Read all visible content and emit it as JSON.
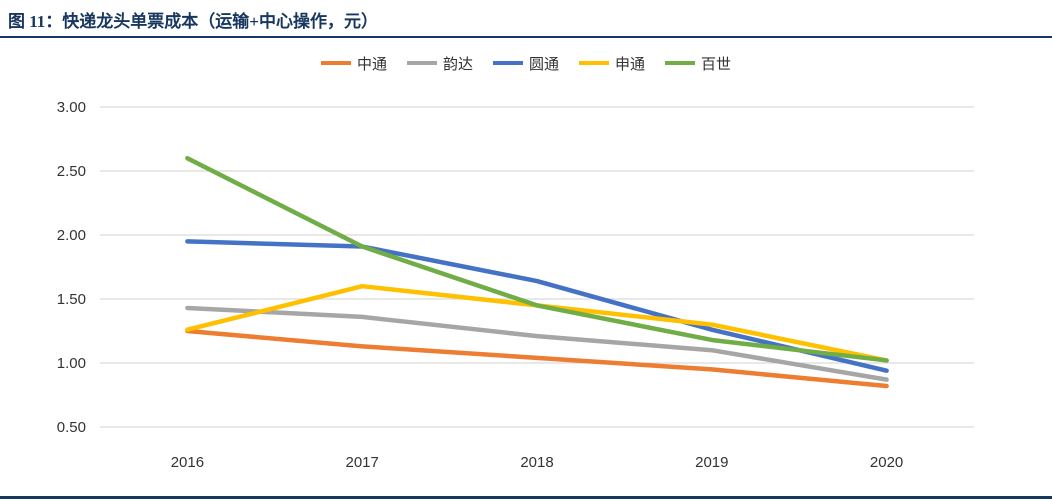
{
  "header": {
    "title": "图 11：快递龙头单票成本（运输+中心操作，元）",
    "accent_color": "#17375E"
  },
  "chart_data": {
    "type": "line",
    "x": [
      "2016",
      "2017",
      "2018",
      "2019",
      "2020"
    ],
    "series": [
      {
        "name": "中通",
        "color": "#ED7D31",
        "values": [
          1.25,
          1.13,
          1.04,
          0.95,
          0.82
        ]
      },
      {
        "name": "韵达",
        "color": "#A6A6A6",
        "values": [
          1.43,
          1.36,
          1.21,
          1.1,
          0.87
        ]
      },
      {
        "name": "圆通",
        "color": "#4472C4",
        "values": [
          1.95,
          1.91,
          1.64,
          1.26,
          0.94
        ]
      },
      {
        "name": "申通",
        "color": "#FFC000",
        "values": [
          1.26,
          1.6,
          1.45,
          1.3,
          1.02
        ]
      },
      {
        "name": "百世",
        "color": "#70AD47",
        "values": [
          2.6,
          1.91,
          1.45,
          1.18,
          1.02
        ]
      }
    ],
    "title": "快递龙头单票成本（运输+中心操作，元）",
    "xlabel": "",
    "ylabel": "",
    "ylim": [
      0.5,
      3.0
    ],
    "ytick_step": 0.5,
    "grid": true,
    "legend_position": "top",
    "grid_color": "#D9D9D9",
    "tick_color": "#333333"
  }
}
